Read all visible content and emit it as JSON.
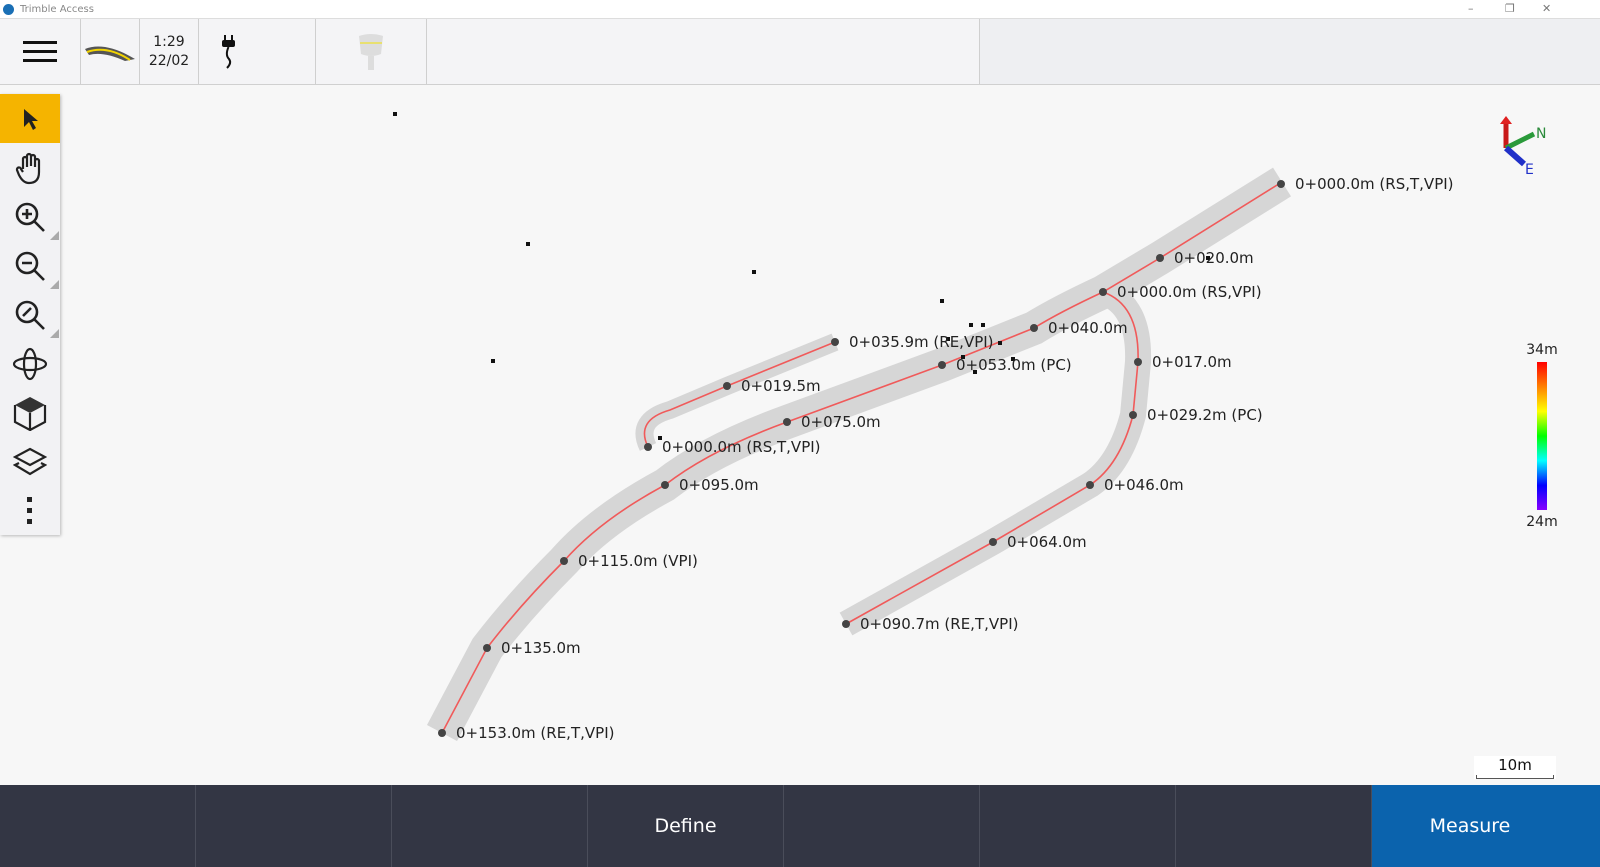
{
  "app": {
    "title": "Trimble Access"
  },
  "topbar": {
    "time": "1:29",
    "date": "22/02",
    "icons": [
      "menu-icon",
      "road-icon",
      "power-plug-icon",
      "gnss-receiver-icon"
    ]
  },
  "tools": [
    "select-arrow-icon",
    "pan-hand-icon",
    "zoom-in-icon",
    "zoom-out-icon",
    "zoom-extents-icon",
    "orbit-icon",
    "3d-view-cube-icon",
    "layers-icon",
    "more-icon"
  ],
  "colors": {
    "selected_tool": "#f5b400",
    "centerline": "#f05a5a",
    "road_surface": "#d6d6d6",
    "bottom_bar": "#333644",
    "measure": "#0b63ad"
  },
  "map": {
    "stations": [
      {
        "label": "0+000.0m (RS,T,VPI)"
      },
      {
        "label": "0+020.0m"
      },
      {
        "label": "0+000.0m (RS,VPI)"
      },
      {
        "label": "0+040.0m"
      },
      {
        "label": "0+035.9m (RE,VPI)"
      },
      {
        "label": "0+053.0m (PC)"
      },
      {
        "label": "0+017.0m"
      },
      {
        "label": "0+019.5m"
      },
      {
        "label": "0+029.2m (PC)"
      },
      {
        "label": "0+075.0m"
      },
      {
        "label": "0+000.0m (RS,T,VPI)"
      },
      {
        "label": "0+095.0m"
      },
      {
        "label": "0+046.0m"
      },
      {
        "label": "0+064.0m"
      },
      {
        "label": "0+115.0m (VPI)"
      },
      {
        "label": "0+090.7m (RE,T,VPI)"
      },
      {
        "label": "0+135.0m"
      },
      {
        "label": "0+153.0m (RE,T,VPI)"
      }
    ],
    "north_arrow": {
      "n": "N",
      "e": "E"
    },
    "elevation_legend": {
      "max": "34m",
      "min": "24m"
    },
    "scale_bar": "10m"
  },
  "bottombar": {
    "buttons": [
      "",
      "",
      "",
      "Define",
      "",
      "",
      "",
      "Measure"
    ]
  }
}
